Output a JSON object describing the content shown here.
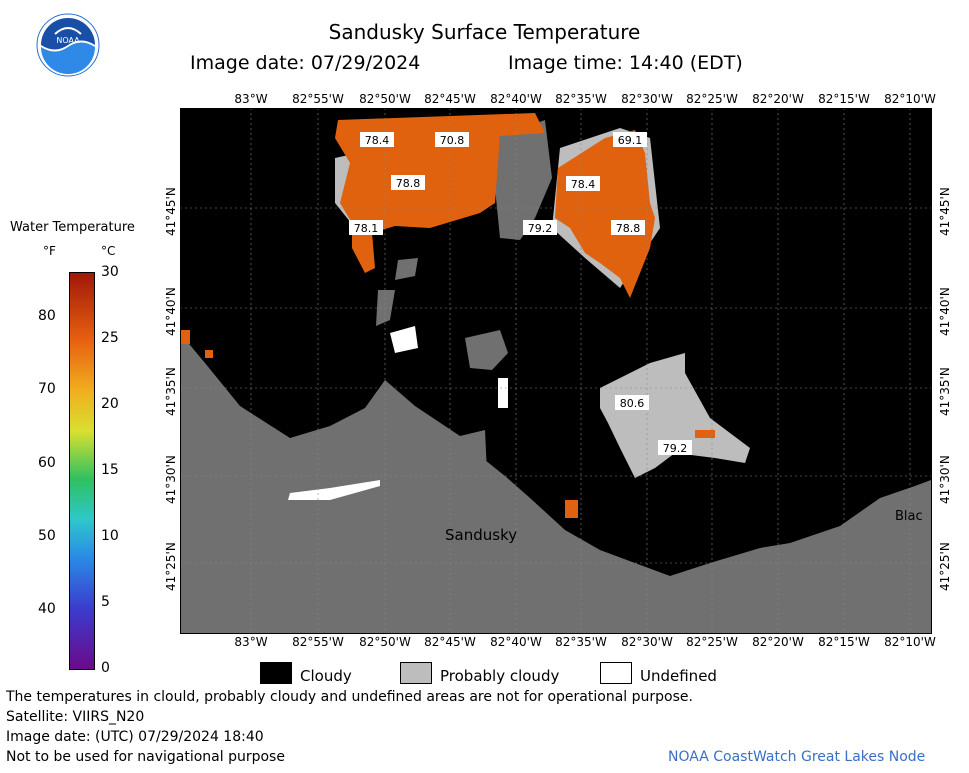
{
  "header": {
    "title": "Sandusky Surface Temperature",
    "image_date": "Image date: 07/29/2024",
    "image_time": "Image time: 14:40 (EDT)",
    "logo_text": "NOAA"
  },
  "colorbar": {
    "title": "Water Temperature",
    "unit_f": "°F",
    "unit_c": "°C",
    "f_ticks": [
      "80",
      "70",
      "60",
      "50",
      "40"
    ],
    "c_ticks": [
      "30",
      "25",
      "20",
      "15",
      "10",
      "5",
      "0"
    ],
    "colors": [
      "#6b0a8a",
      "#3b3bcc",
      "#2a8ae6",
      "#2ec8c8",
      "#30c060",
      "#d8e030",
      "#f0b020",
      "#e86010",
      "#a01808"
    ]
  },
  "map": {
    "lon_ticks_top": [
      "83°W",
      "82°55'W",
      "82°50'W",
      "82°45'W",
      "82°40'W",
      "82°35'W",
      "82°30'W",
      "82°25'W",
      "82°20'W",
      "82°15'W",
      "82°10'W"
    ],
    "lon_ticks_bottom": [
      "83°W",
      "82°55'W",
      "82°50'W",
      "82°45'W",
      "82°40'W",
      "82°35'W",
      "82°30'W",
      "82°25'W",
      "82°20'W",
      "82°15'W",
      "82°10'W"
    ],
    "lat_ticks": [
      "41°45'N",
      "41°40'N",
      "41°35'N",
      "41°30'N",
      "41°25'N"
    ],
    "temperature_labels": [
      "78.4",
      "70.8",
      "69.1",
      "78.4",
      "78.8",
      "78.1",
      "79.2",
      "78.8",
      "80.6",
      "79.2"
    ],
    "place_labels": [
      "Sandusky",
      "Blac"
    ],
    "colors": {
      "cloud": "#000000",
      "land": "#707070",
      "probably_cloudy": "#bdbdbd",
      "warm_water": "#e0620e",
      "undefined": "#ffffff"
    }
  },
  "legend": {
    "cloudy": "Cloudy",
    "probably_cloudy": "Probably cloudy",
    "undefined": "Undefined"
  },
  "footer": {
    "disclaimer": "The temperatures in clould, probably cloudy and undefined areas are not for operational purpose.",
    "satellite": "Satellite: VIIRS_N20",
    "utc_date": "Image date: (UTC) 07/29/2024  18:40",
    "nav_warning": "Not to be used for navigational purpose",
    "credit": "NOAA CoastWatch Great Lakes Node"
  }
}
